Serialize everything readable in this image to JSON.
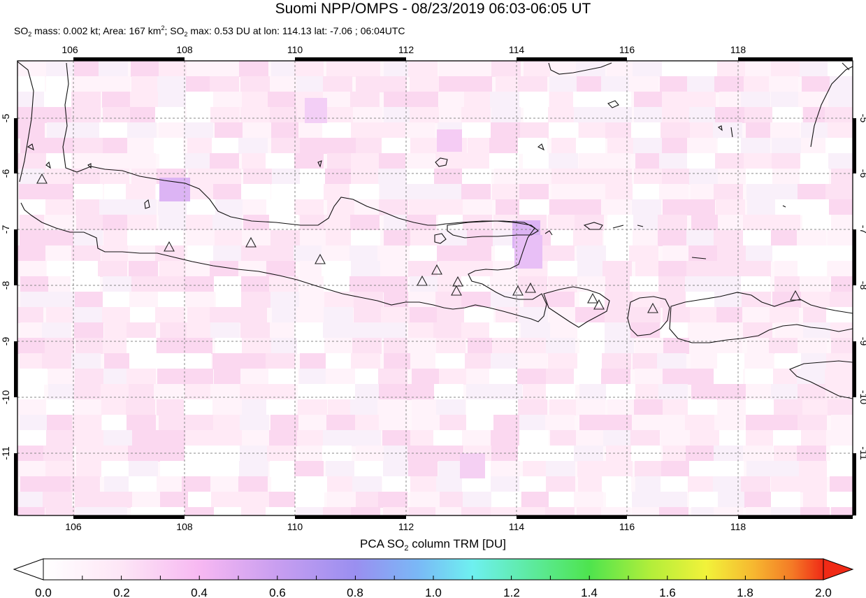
{
  "header": {
    "title": "Suomi NPP/OMPS - 08/23/2019 06:03-06:05 UT",
    "subtitle": {
      "so2_1": "SO",
      "sub_1": "2",
      "mass_text": " mass: 0.002 kt; Area: 167 km",
      "sup_1": "2",
      "sep": "; SO",
      "sub_2": "2",
      "max_text": " max: 0.53 DU at lon: 114.13 lat: -7.06 ; 06:04UTC"
    }
  },
  "map": {
    "lon_ticks": [
      "106",
      "108",
      "110",
      "112",
      "114",
      "116",
      "118"
    ],
    "lat_ticks": [
      "-5",
      "-6",
      "-7",
      "-8",
      "-9",
      "-10",
      "-11"
    ],
    "volcano_marker": "triangle-icon"
  },
  "colorbar": {
    "label_pre": "PCA SO",
    "label_sub": "2",
    "label_post": " column TRM [DU]",
    "ticks": [
      "0.0",
      "0.2",
      "0.4",
      "0.6",
      "0.8",
      "1.0",
      "1.2",
      "1.4",
      "1.6",
      "1.8",
      "2.0"
    ],
    "colors": [
      "#ffffff",
      "#fde6f6",
      "#f7b8f2",
      "#c89ef0",
      "#9a8ff0",
      "#7ab8f6",
      "#6ef0f0",
      "#5cea9a",
      "#4ee44e",
      "#b4ee3a",
      "#f2f23a",
      "#f6b830",
      "#f47a26",
      "#f02a16"
    ]
  }
}
